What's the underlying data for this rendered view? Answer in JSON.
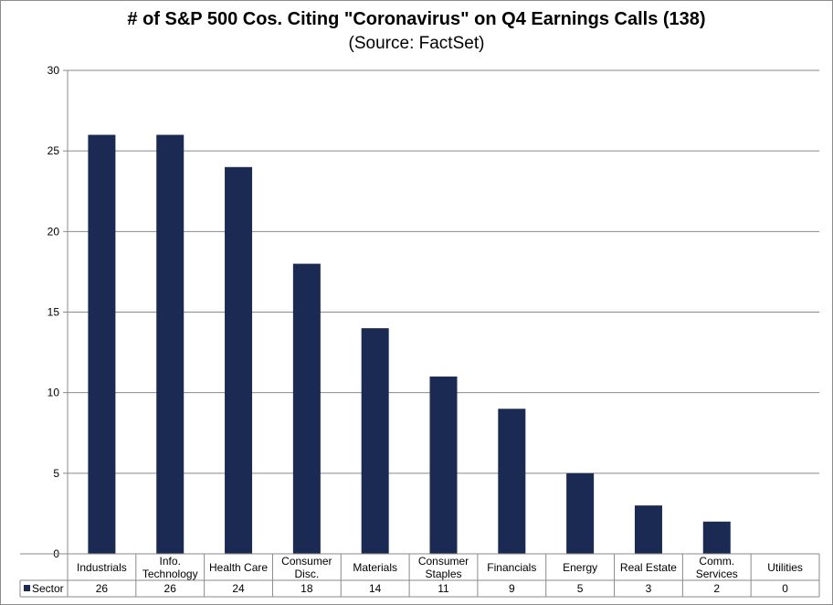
{
  "chart_data": {
    "type": "bar",
    "title": "# of S&P 500 Cos. Citing \"Coronavirus\" on Q4 Earnings Calls (138)",
    "subtitle": "(Source: FactSet)",
    "categories": [
      [
        "Industrials"
      ],
      [
        "Info.",
        "Technology"
      ],
      [
        "Health Care"
      ],
      [
        "Consumer",
        "Disc."
      ],
      [
        "Materials"
      ],
      [
        "Consumer",
        "Staples"
      ],
      [
        "Financials"
      ],
      [
        "Energy"
      ],
      [
        "Real Estate"
      ],
      [
        "Comm.",
        "Services"
      ],
      [
        "Utilities"
      ]
    ],
    "series": [
      {
        "name": "Sector",
        "values": [
          26,
          26,
          24,
          18,
          14,
          11,
          9,
          5,
          3,
          2,
          0
        ],
        "color": "#1b2a52"
      }
    ],
    "ylim": [
      0,
      30
    ],
    "yticks": [
      0,
      5,
      10,
      15,
      20,
      25,
      30
    ],
    "grid": true,
    "legend": "data-table"
  }
}
